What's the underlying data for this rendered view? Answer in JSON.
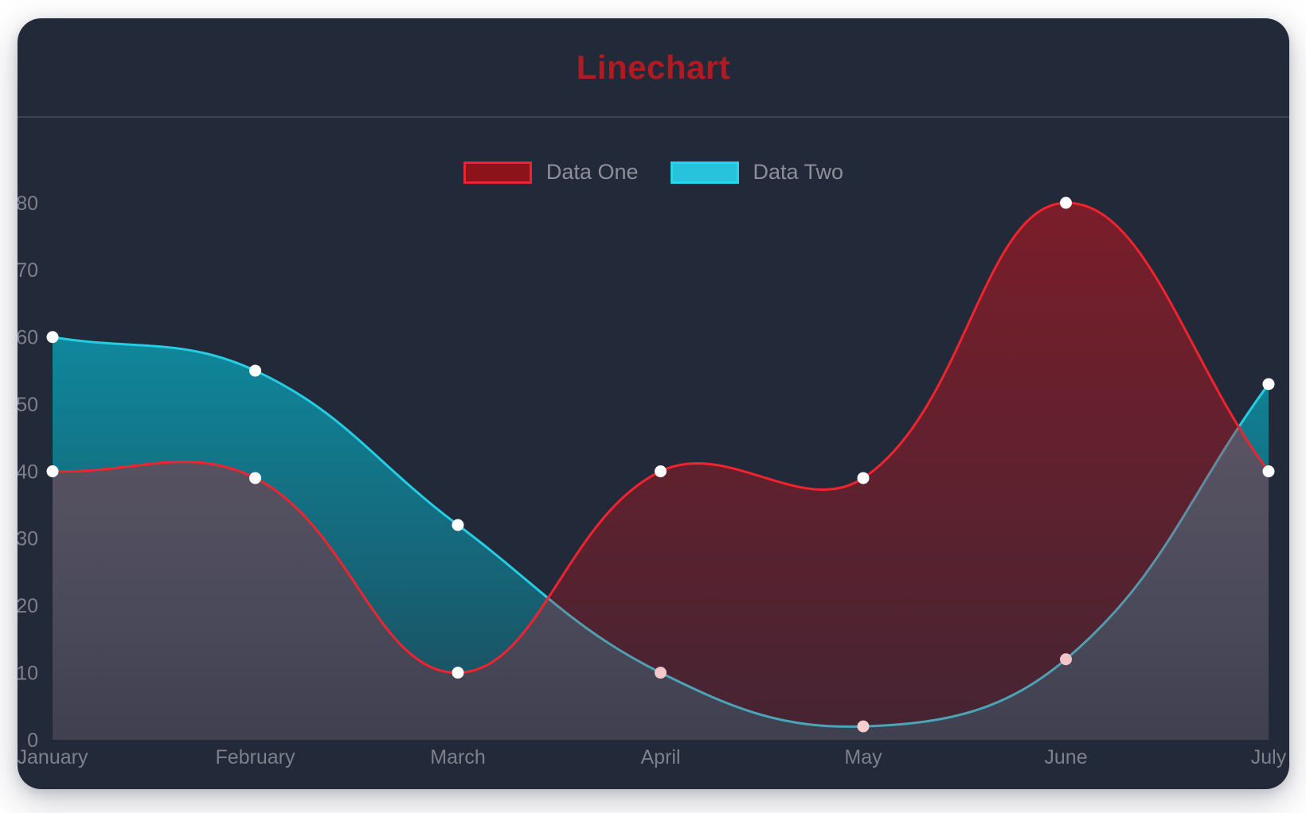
{
  "title": {
    "text": "Linechart",
    "color": "#b01b22"
  },
  "card": {
    "background": "#222938",
    "divider_color": "#3a4358"
  },
  "legend": [
    {
      "label": "Data One",
      "fill": "#8c131a",
      "border": "#ee2330"
    },
    {
      "label": "Data Two",
      "fill": "#27c3dc",
      "border": "#2bd4e8"
    }
  ],
  "chart_data": {
    "type": "line",
    "title": "Linechart",
    "xlabel": "",
    "ylabel": "",
    "x": [
      "January",
      "February",
      "March",
      "April",
      "May",
      "June",
      "July"
    ],
    "series": [
      {
        "name": "Data One",
        "values": [
          40,
          39,
          10,
          40,
          39,
          80,
          40
        ],
        "line_color": "#f1232e",
        "fill_color": "#d2121c",
        "fill_alpha_top": 0.5,
        "fill_alpha_bottom": 0.2
      },
      {
        "name": "Data Two",
        "values": [
          60,
          55,
          32,
          10,
          2,
          12,
          53
        ],
        "line_color": "#25cde4",
        "fill_color": "#00d2eb",
        "fill_alpha_top": 0.68,
        "fill_alpha_bottom": 0.2
      }
    ],
    "ylim": [
      0,
      80
    ],
    "y_ticks": [
      0,
      10,
      20,
      30,
      40,
      50,
      60,
      70,
      80
    ],
    "grid": false,
    "smooth": true,
    "legend_position": "top",
    "point_color": "#ffffff",
    "axis_text_color": "#7c818c"
  }
}
